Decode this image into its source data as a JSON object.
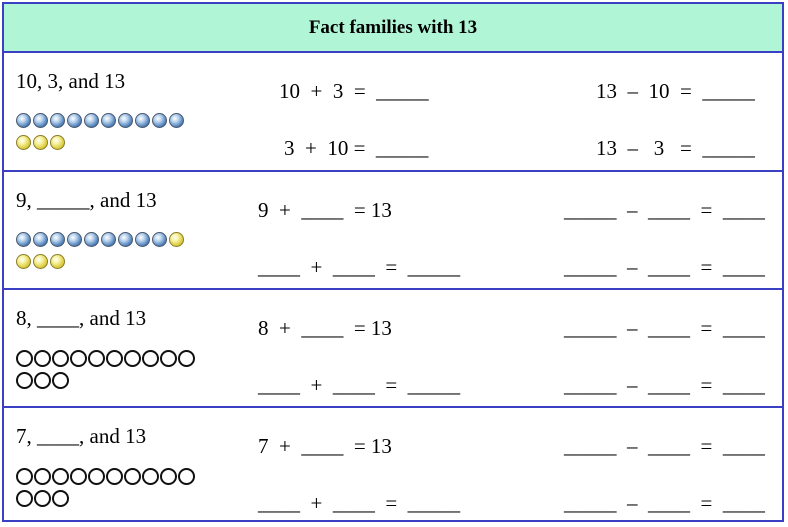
{
  "title": "Fact families with  13",
  "rows": [
    {
      "label": "10, 3, and 13",
      "add1": "10  +  3  =  _____",
      "add2": "3  +  10 =  _____",
      "sub1": "13  –  10  =  _____",
      "sub2": "13  –   3   =  _____",
      "counters": {
        "style": "marbles",
        "rows": [
          [
            "blue",
            "blue",
            "blue",
            "blue",
            "blue",
            "blue",
            "blue",
            "blue",
            "blue",
            "blue"
          ],
          [
            "yellow",
            "yellow",
            "yellow"
          ]
        ]
      }
    },
    {
      "label": "9, _____, and 13",
      "add1": "9  +  ____  = 13",
      "add2": "____  +  ____  =  _____",
      "sub1": "_____  –  ____  =  ____",
      "sub2": "_____  –  ____  =  ____",
      "counters": {
        "style": "marbles",
        "rows": [
          [
            "blue",
            "blue",
            "blue",
            "blue",
            "blue",
            "blue",
            "blue",
            "blue",
            "blue",
            "yellow"
          ],
          [
            "yellow",
            "yellow",
            "yellow"
          ]
        ]
      }
    },
    {
      "label": "8, ____, and 13",
      "add1": "8  +  ____  = 13",
      "add2": "____  +  ____  =  _____",
      "sub1": "_____  –  ____  =  ____",
      "sub2": "_____  –  ____  =  ____",
      "counters": {
        "style": "circles",
        "rows": [
          10,
          3
        ]
      }
    },
    {
      "label": "7, ____, and 13",
      "add1": "7  +  ____  = 13",
      "add2": "____  +  ____  =  _____",
      "sub1": "_____  –  ____  =  ____",
      "sub2": "_____  –  ____  =  ____",
      "counters": {
        "style": "circles",
        "rows": [
          10,
          3
        ]
      }
    }
  ]
}
